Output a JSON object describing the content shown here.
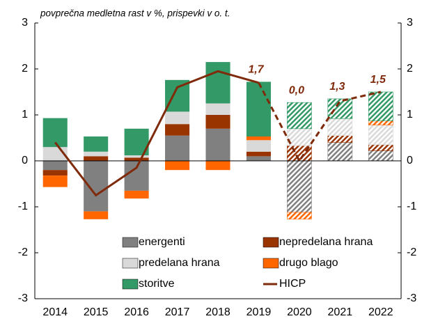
{
  "chart_data": {
    "type": "stacked_bar_line",
    "title": "povprečna medletna rast v %, prispevki v o. t.",
    "categories": [
      "2014",
      "2015",
      "2016",
      "2017",
      "2018",
      "2019",
      "2020",
      "2021",
      "2022"
    ],
    "hatched": [
      false,
      false,
      false,
      false,
      false,
      false,
      true,
      true,
      true
    ],
    "series": [
      {
        "name": "energenti",
        "color": "#808080",
        "values": [
          -0.2,
          -1.1,
          -0.65,
          0.55,
          0.7,
          0.1,
          -1.12,
          0.4,
          0.22
        ]
      },
      {
        "name": "nepredelana hrana",
        "color": "#993300",
        "values": [
          -0.12,
          0.1,
          0.07,
          0.25,
          0.3,
          0.1,
          0.33,
          0.15,
          0.13
        ]
      },
      {
        "name": "predelana hrana",
        "color": "#d9d9d9",
        "values": [
          0.3,
          0.1,
          0.05,
          0.27,
          0.25,
          0.25,
          0.37,
          0.37,
          0.43
        ]
      },
      {
        "name": "drugo blago",
        "color": "#ff6600",
        "values": [
          -0.25,
          -0.17,
          -0.17,
          -0.2,
          -0.2,
          0.08,
          -0.15,
          0.0,
          0.09
        ]
      },
      {
        "name": "storitve",
        "color": "#339966",
        "values": [
          0.63,
          0.33,
          0.58,
          0.69,
          0.9,
          1.19,
          0.57,
          0.43,
          0.63
        ]
      }
    ],
    "line": {
      "name": "HICP",
      "color": "#7f2a0a",
      "values": [
        0.4,
        -0.75,
        -0.15,
        1.6,
        1.95,
        1.7,
        0.0,
        1.3,
        1.5
      ],
      "value_labels": [
        null,
        null,
        null,
        null,
        null,
        "1,7",
        "0,0",
        "1,3",
        "1,5"
      ]
    },
    "ylim": [
      -3,
      3
    ],
    "yticks": [
      -3,
      -2,
      -1,
      0,
      1,
      2,
      3
    ]
  }
}
